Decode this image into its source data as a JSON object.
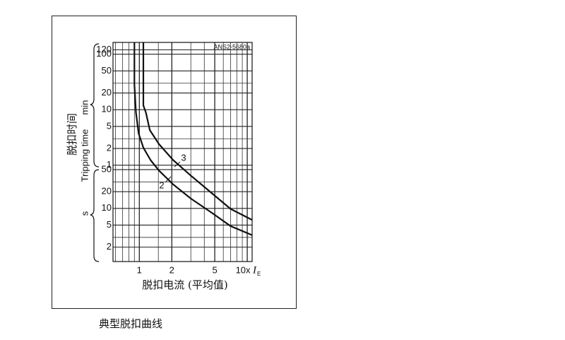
{
  "chart_data": {
    "type": "line",
    "drawing_id": "ANS2-5680a",
    "y_label_cn": "脱扣时间",
    "y_label": "Tripping time",
    "y_unit_upper": "min",
    "y_unit_lower": "s",
    "x_label": "脱扣电流 (平均值)",
    "x_unit": "I",
    "x_unit_sub": "E",
    "xlog": true,
    "ylog": true,
    "grid": true,
    "xlim": [
      0.57,
      11.1
    ],
    "ylim": [
      1.1,
      9800
    ],
    "xticks": [
      1,
      2,
      5,
      {
        "value": 10,
        "label": "10x"
      }
    ],
    "yticks": [
      {
        "value": 7200,
        "label": "120"
      },
      {
        "value": 6000,
        "label": "100"
      },
      {
        "value": 3000,
        "label": "50"
      },
      {
        "value": 1200,
        "label": "20"
      },
      {
        "value": 600,
        "label": "10"
      },
      {
        "value": 300,
        "label": "5"
      },
      {
        "value": 120,
        "label": "2"
      },
      {
        "value": 60,
        "label": "1"
      },
      50,
      20,
      10,
      5,
      2
    ],
    "x_minor_grid": [
      0.6,
      0.7,
      0.8,
      0.9,
      1.5,
      3,
      4,
      6,
      7,
      8,
      9
    ],
    "y_minor_grid": [
      1800,
      180,
      30,
      3
    ],
    "series": [
      {
        "name": "2",
        "color": "#111111",
        "x": [
          0.9,
          0.9,
          0.93,
          0.985,
          1.09,
          1.27,
          1.52,
          2.06,
          3.0,
          4.7,
          7.0,
          11.1
        ],
        "values": [
          9800,
          1716,
          534,
          223,
          124,
          74,
          48,
          27,
          15,
          8.3,
          4.8,
          3.3
        ]
      },
      {
        "name": "3",
        "color": "#111111",
        "x": [
          1.09,
          1.09,
          1.15,
          1.25,
          1.52,
          2.06,
          3.0,
          4.7,
          7.0,
          11.1
        ],
        "values": [
          9800,
          714,
          534,
          258,
          144,
          74,
          39,
          18.7,
          9.8,
          6.2
        ]
      }
    ]
  },
  "caption": "典型脱扣曲线"
}
